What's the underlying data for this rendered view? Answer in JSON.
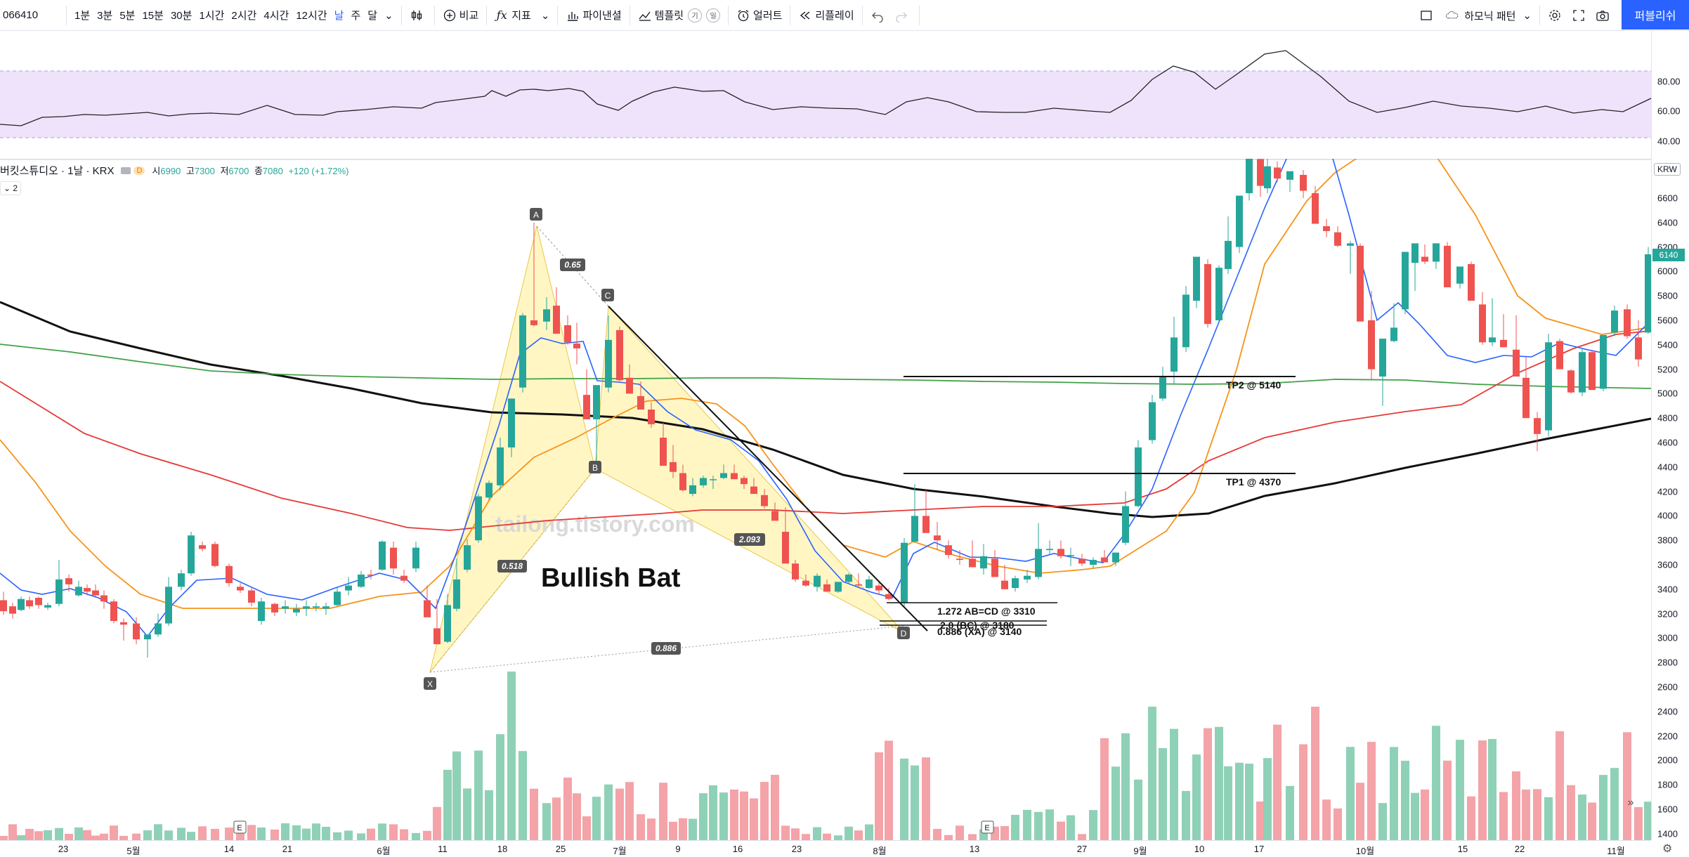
{
  "toolbar": {
    "symbol": "066410",
    "timeframes": [
      "1분",
      "3분",
      "5분",
      "15분",
      "30분",
      "1시간",
      "2시간",
      "4시간",
      "12시간",
      "날",
      "주",
      "달"
    ],
    "active_timeframe": "날",
    "compare_label": "비교",
    "indicators_label": "지표",
    "pine_label": "파이낸셜",
    "template_label": "템플릿",
    "template_badges": [
      "기",
      "일"
    ],
    "alert_label": "얼러트",
    "replay_label": "리플레이",
    "layout_label": "하모닉 패턴",
    "publish_label": "퍼블리쉬"
  },
  "legend": {
    "title": "버킷스튜디오 · 1날 · KRX",
    "badge": "D",
    "open_label": "시",
    "open": "6990",
    "high_label": "고",
    "high": "7300",
    "low_label": "저",
    "low": "6700",
    "close_label": "종",
    "close": "7080",
    "change": "+120 (+1.72%)",
    "collapse_count": "2"
  },
  "currency": "KRW",
  "last_price_label": "6140",
  "rsi_axis_ticks": [
    "80.00",
    "60.00",
    "40.00"
  ],
  "price_axis_ticks": [
    "6600",
    "6400",
    "6200",
    "6000",
    "5800",
    "5600",
    "5400",
    "5200",
    "5000",
    "4800",
    "4600",
    "4400",
    "4200",
    "4000",
    "3800",
    "3600",
    "3400",
    "3200",
    "3000",
    "2800",
    "2600",
    "2400",
    "2200",
    "2000",
    "1800",
    "1600",
    "1400"
  ],
  "time_axis_ticks": [
    "23",
    "5월",
    "14",
    "21",
    "6월",
    "11",
    "18",
    "25",
    "7월",
    "9",
    "16",
    "23",
    "8월",
    "13",
    "27",
    "9월",
    "10",
    "17",
    "10월",
    "15",
    "22",
    "11월"
  ],
  "event_markers": [
    "E",
    "E"
  ],
  "watermark": "tailong.tistory.com",
  "pattern": {
    "name": "Bullish Bat",
    "points": [
      "X",
      "A",
      "B",
      "C",
      "D"
    ],
    "ratios": {
      "xb": "0.518",
      "ac": "0.65",
      "bd": "2.093",
      "xd": "0.886"
    },
    "levels": [
      "1.272 AB=CD @ 3310",
      "2.0 (BC) @ 3180",
      "0.886 (XA) @ 3140"
    ],
    "targets": [
      "TP1 @ 4370",
      "TP2 @ 5140"
    ]
  },
  "colors": {
    "up": "#26a69a",
    "down": "#ef5350",
    "vol_up": "#8fd1b7",
    "vol_down": "#f4a3a8",
    "ma_blue": "#2962ff",
    "ma_orange": "#f7931a",
    "ma_red": "#e53935",
    "ma_green": "#43a047",
    "ma_black": "#111111",
    "rsi_line": "#222222",
    "rsi_band": "#efe3fb",
    "pattern_fill": "#fff3b0",
    "accent": "#2962ff"
  },
  "icons": [
    "candles-icon",
    "plus-circle-icon",
    "fx-icon",
    "bar-chart-icon",
    "template-icon",
    "alarm-icon",
    "rewind-icon",
    "undo-icon",
    "redo-icon",
    "square-icon",
    "cloud-icon",
    "gear-icon",
    "fullscreen-icon",
    "camera-icon"
  ]
}
